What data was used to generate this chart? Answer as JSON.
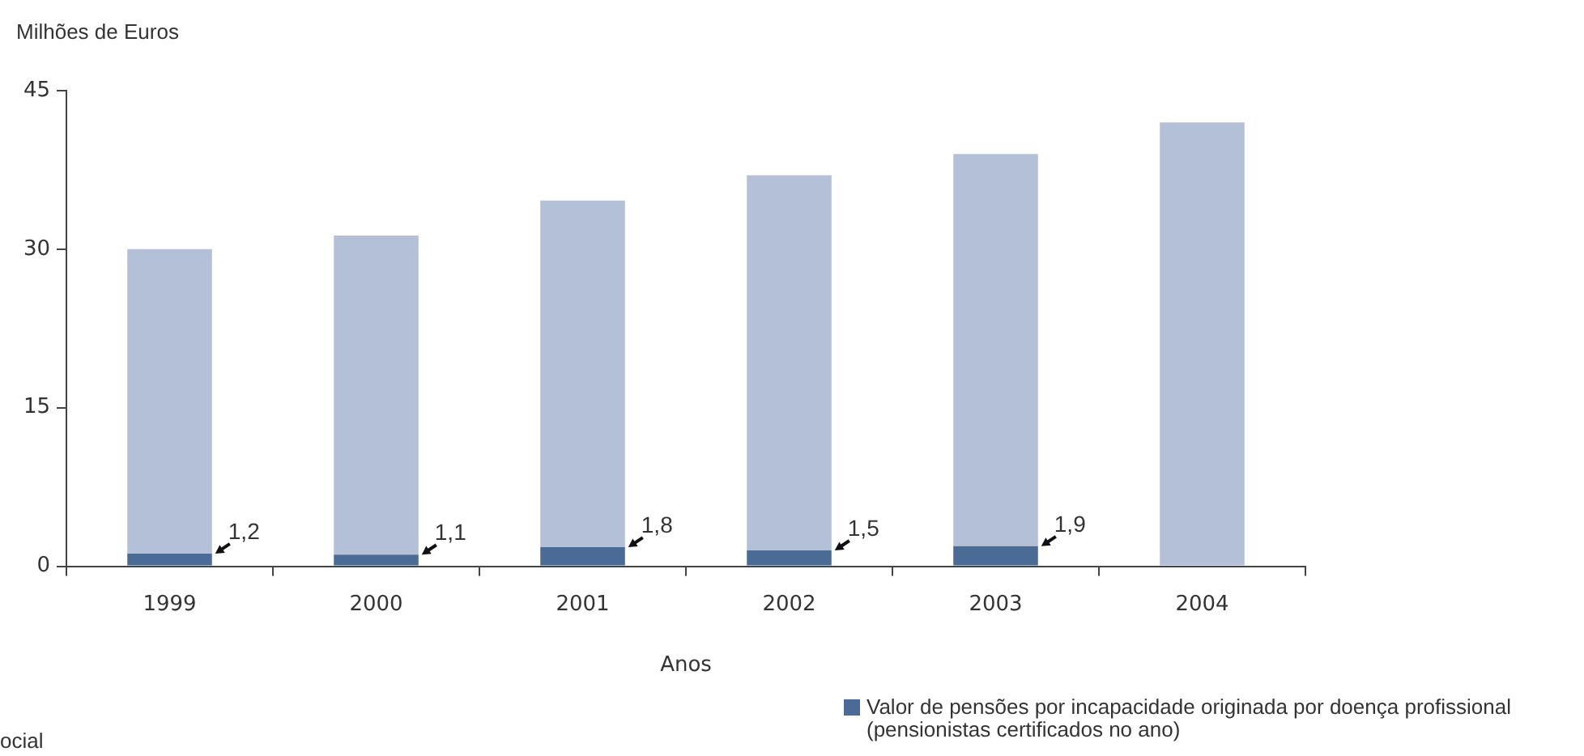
{
  "chart_data": {
    "type": "bar",
    "ylabel": "Milhões de Euros",
    "xlabel": "Anos",
    "categories": [
      "1999",
      "2000",
      "2001",
      "2002",
      "2003",
      "2004"
    ],
    "stacked": true,
    "series": [
      {
        "name": "Valor de pensões por incapacidade originada por doença profissional (pensionistas certificados no ano)",
        "color": "#4a6b96",
        "values": [
          1.2,
          1.1,
          1.8,
          1.5,
          1.9,
          null
        ],
        "value_labels": [
          "1,2",
          "1,1",
          "1,8",
          "1,5",
          "1,9",
          null
        ]
      },
      {
        "color": "#b4c0d8",
        "values": [
          28.8,
          30.2,
          32.8,
          35.5,
          37.1,
          42.0
        ]
      }
    ],
    "ylim": [
      0,
      45
    ],
    "yticks": [
      0,
      15,
      30,
      45
    ],
    "legend": "bottom right",
    "annotations": [
      "ocial"
    ]
  }
}
